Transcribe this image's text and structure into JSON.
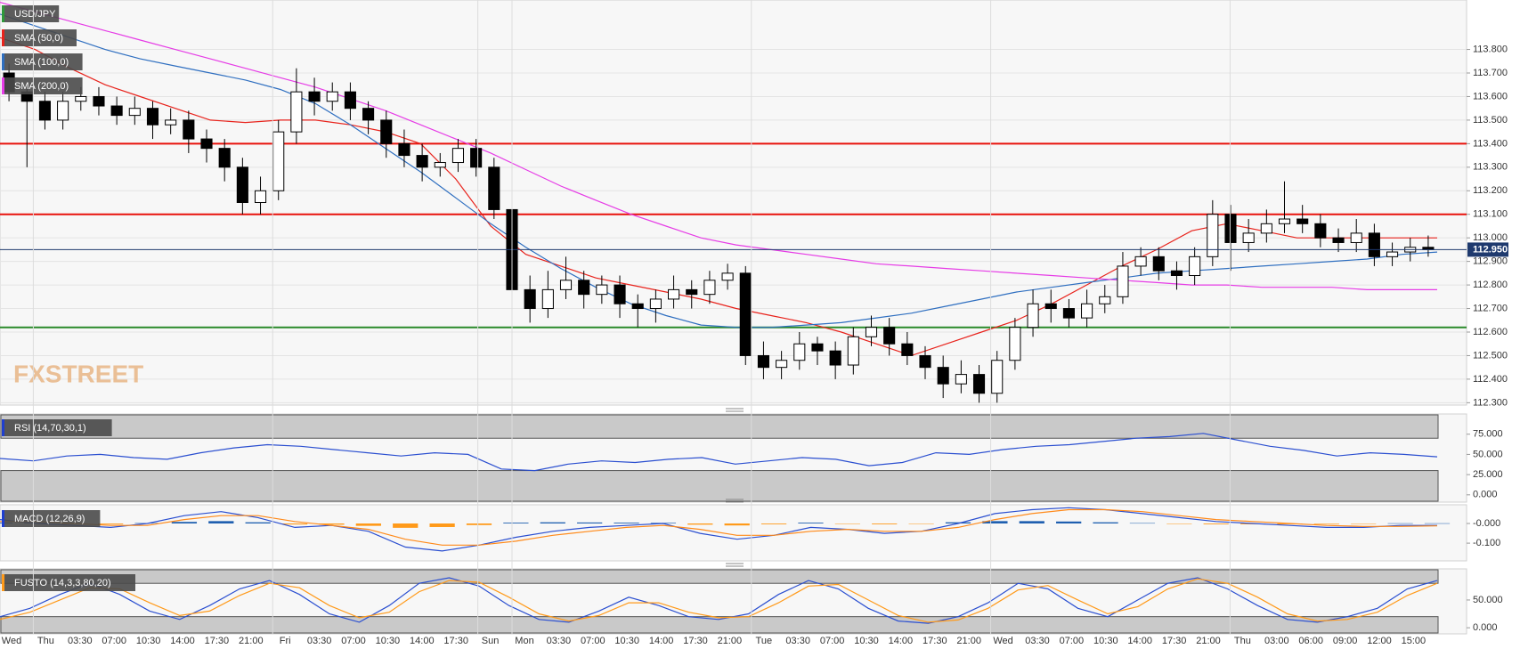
{
  "chart_data": [
    {
      "type": "candlestick",
      "title": "USD/JPY",
      "title_color": "#2e9a3a",
      "watermark": "FXSTREET",
      "categories": [
        "Wed",
        "Thu",
        "03:30",
        "07:00",
        "10:30",
        "14:00",
        "17:30",
        "21:00",
        "Fri",
        "03:30",
        "07:00",
        "10:30",
        "14:00",
        "17:30",
        "Sun",
        "Mon",
        "03:30",
        "07:00",
        "10:30",
        "14:00",
        "17:30",
        "21:00",
        "Tue",
        "03:30",
        "07:00",
        "10:30",
        "14:00",
        "17:30",
        "21:00",
        "Wed",
        "03:30",
        "07:00",
        "10:30",
        "14:00",
        "17:30",
        "21:00",
        "Thu",
        "03:00",
        "06:00",
        "09:00",
        "12:00",
        "15:00"
      ],
      "ylim": [
        112.29,
        114.01
      ],
      "yticks": [
        {
          "value": 112.3,
          "label": "112.300"
        },
        {
          "value": 112.4,
          "label": "112.400"
        },
        {
          "value": 112.5,
          "label": "112.500"
        },
        {
          "value": 112.6,
          "label": "112.600"
        },
        {
          "value": 112.7,
          "label": "112.700"
        },
        {
          "value": 112.8,
          "label": "112.800"
        },
        {
          "value": 112.9,
          "label": "112.900"
        },
        {
          "value": 113.0,
          "label": "113.000"
        },
        {
          "value": 113.1,
          "label": "113.100"
        },
        {
          "value": 113.2,
          "label": "113.200"
        },
        {
          "value": 113.3,
          "label": "113.300"
        },
        {
          "value": 113.4,
          "label": "113.400"
        },
        {
          "value": 113.5,
          "label": "113.500"
        },
        {
          "value": 113.6,
          "label": "113.600"
        },
        {
          "value": 113.7,
          "label": "113.700"
        },
        {
          "value": 113.8,
          "label": "113.800"
        }
      ],
      "grid": true,
      "levels": [
        {
          "value": 113.4,
          "color": "#e8120c"
        },
        {
          "value": 113.1,
          "color": "#e8120c"
        },
        {
          "value": 112.62,
          "color": "#2a8a2a"
        }
      ],
      "last": {
        "value": 112.95,
        "label": "112.950",
        "color": "#1f3a6e"
      },
      "candles": [
        [
          113.7,
          113.74,
          113.58,
          113.62
        ],
        [
          113.62,
          113.66,
          113.3,
          113.58
        ],
        [
          113.58,
          113.62,
          113.46,
          113.5
        ],
        [
          113.5,
          113.62,
          113.46,
          113.58
        ],
        [
          113.58,
          113.64,
          113.54,
          113.6
        ],
        [
          113.6,
          113.64,
          113.52,
          113.56
        ],
        [
          113.56,
          113.6,
          113.48,
          113.52
        ],
        [
          113.52,
          113.6,
          113.48,
          113.55
        ],
        [
          113.55,
          113.58,
          113.42,
          113.48
        ],
        [
          113.48,
          113.55,
          113.44,
          113.5
        ],
        [
          113.5,
          113.54,
          113.36,
          113.42
        ],
        [
          113.42,
          113.46,
          113.32,
          113.38
        ],
        [
          113.38,
          113.42,
          113.24,
          113.3
        ],
        [
          113.3,
          113.34,
          113.1,
          113.15
        ],
        [
          113.15,
          113.26,
          113.1,
          113.2
        ],
        [
          113.2,
          113.5,
          113.16,
          113.45
        ],
        [
          113.45,
          113.72,
          113.4,
          113.62
        ],
        [
          113.62,
          113.68,
          113.52,
          113.58
        ],
        [
          113.58,
          113.66,
          113.54,
          113.62
        ],
        [
          113.62,
          113.66,
          113.5,
          113.55
        ],
        [
          113.55,
          113.58,
          113.44,
          113.5
        ],
        [
          113.5,
          113.54,
          113.34,
          113.4
        ],
        [
          113.4,
          113.46,
          113.3,
          113.35
        ],
        [
          113.35,
          113.4,
          113.24,
          113.3
        ],
        [
          113.3,
          113.36,
          113.26,
          113.32
        ],
        [
          113.32,
          113.42,
          113.28,
          113.38
        ],
        [
          113.38,
          113.42,
          113.26,
          113.3
        ],
        [
          113.3,
          113.34,
          113.08,
          113.12
        ],
        [
          113.12,
          113.16,
          112.68,
          112.78
        ],
        [
          112.78,
          112.84,
          112.64,
          112.7
        ],
        [
          112.7,
          112.86,
          112.66,
          112.78
        ],
        [
          112.78,
          112.92,
          112.74,
          112.82
        ],
        [
          112.82,
          112.86,
          112.7,
          112.76
        ],
        [
          112.76,
          112.84,
          112.72,
          112.8
        ],
        [
          112.8,
          112.84,
          112.66,
          112.72
        ],
        [
          112.72,
          112.76,
          112.62,
          112.7
        ],
        [
          112.7,
          112.78,
          112.64,
          112.74
        ],
        [
          112.74,
          112.84,
          112.7,
          112.78
        ],
        [
          112.78,
          112.82,
          112.7,
          112.76
        ],
        [
          112.76,
          112.86,
          112.72,
          112.82
        ],
        [
          112.82,
          112.89,
          112.78,
          112.85
        ],
        [
          112.85,
          112.88,
          112.46,
          112.5
        ],
        [
          112.5,
          112.56,
          112.4,
          112.45
        ],
        [
          112.45,
          112.52,
          112.4,
          112.48
        ],
        [
          112.48,
          112.6,
          112.44,
          112.55
        ],
        [
          112.55,
          112.58,
          112.46,
          112.52
        ],
        [
          112.52,
          112.56,
          112.4,
          112.46
        ],
        [
          112.46,
          112.62,
          112.42,
          112.58
        ],
        [
          112.58,
          112.67,
          112.54,
          112.62
        ],
        [
          112.62,
          112.66,
          112.5,
          112.55
        ],
        [
          112.55,
          112.6,
          112.46,
          112.5
        ],
        [
          112.5,
          112.54,
          112.4,
          112.45
        ],
        [
          112.45,
          112.5,
          112.32,
          112.38
        ],
        [
          112.38,
          112.48,
          112.34,
          112.42
        ],
        [
          112.42,
          112.46,
          112.3,
          112.34
        ],
        [
          112.34,
          112.52,
          112.3,
          112.48
        ],
        [
          112.48,
          112.66,
          112.44,
          112.62
        ],
        [
          112.62,
          112.78,
          112.58,
          112.72
        ],
        [
          112.72,
          112.78,
          112.64,
          112.7
        ],
        [
          112.7,
          112.74,
          112.62,
          112.66
        ],
        [
          112.66,
          112.78,
          112.62,
          112.72
        ],
        [
          112.72,
          112.8,
          112.68,
          112.75
        ],
        [
          112.75,
          112.94,
          112.72,
          112.88
        ],
        [
          112.88,
          112.96,
          112.84,
          112.92
        ],
        [
          112.92,
          112.96,
          112.82,
          112.86
        ],
        [
          112.86,
          112.9,
          112.78,
          112.84
        ],
        [
          112.84,
          112.96,
          112.8,
          112.92
        ],
        [
          112.92,
          113.16,
          112.88,
          113.1
        ],
        [
          113.1,
          113.14,
          112.86,
          112.98
        ],
        [
          112.98,
          113.08,
          112.94,
          113.02
        ],
        [
          113.02,
          113.12,
          112.98,
          113.06
        ],
        [
          113.06,
          113.24,
          113.02,
          113.08
        ],
        [
          113.08,
          113.14,
          113.02,
          113.06
        ],
        [
          113.06,
          113.1,
          112.96,
          113.0
        ],
        [
          113.0,
          113.04,
          112.94,
          112.98
        ],
        [
          112.98,
          113.08,
          112.94,
          113.02
        ],
        [
          113.02,
          113.06,
          112.88,
          112.92
        ],
        [
          112.92,
          112.98,
          112.88,
          112.94
        ],
        [
          112.94,
          113.0,
          112.9,
          112.96
        ],
        [
          112.96,
          113.01,
          112.92,
          112.95
        ]
      ],
      "series": [
        {
          "name": "SMA (50,0)",
          "color": "#e8231c",
          "values": [
            113.85,
            113.8,
            113.72,
            113.65,
            113.6,
            113.55,
            113.5,
            113.49,
            113.5,
            113.5,
            113.48,
            113.45,
            113.4,
            113.25,
            113.05,
            112.93,
            112.88,
            112.83,
            112.8,
            112.77,
            112.74,
            112.7,
            112.67,
            112.64,
            112.6,
            112.55,
            112.5,
            112.55,
            112.6,
            112.65,
            112.72,
            112.8,
            112.88,
            112.95,
            113.03,
            113.06,
            113.03,
            113.0,
            113.0,
            113.0,
            113.0,
            113.0
          ]
        },
        {
          "name": "SMA (100,0)",
          "color": "#2f6fc0",
          "values": [
            113.95,
            113.9,
            113.85,
            113.8,
            113.76,
            113.73,
            113.7,
            113.67,
            113.63,
            113.57,
            113.48,
            113.38,
            113.28,
            113.17,
            113.06,
            112.96,
            112.87,
            112.79,
            112.72,
            112.67,
            112.63,
            112.62,
            112.62,
            112.63,
            112.64,
            112.66,
            112.68,
            112.71,
            112.74,
            112.77,
            112.79,
            112.81,
            112.83,
            112.85,
            112.86,
            112.87,
            112.88,
            112.89,
            112.9,
            112.91,
            112.93,
            112.94
          ]
        },
        {
          "name": "SMA (200,0)",
          "color": "#e63ce6",
          "values": [
            114.0,
            113.96,
            113.92,
            113.88,
            113.84,
            113.8,
            113.76,
            113.72,
            113.68,
            113.64,
            113.59,
            113.54,
            113.48,
            113.42,
            113.36,
            113.29,
            113.22,
            113.16,
            113.1,
            113.05,
            113.0,
            112.97,
            112.95,
            112.93,
            112.91,
            112.89,
            112.88,
            112.87,
            112.86,
            112.85,
            112.84,
            112.83,
            112.82,
            112.81,
            112.8,
            112.8,
            112.79,
            112.79,
            112.79,
            112.78,
            112.78,
            112.78
          ]
        }
      ]
    },
    {
      "type": "line",
      "title": "RSI (14,70,30,1)",
      "title_color": "#1f3fd0",
      "ylim": [
        -9,
        100
      ],
      "yticks": [
        {
          "value": 0,
          "label": "0.000"
        },
        {
          "value": 25,
          "label": "25.000"
        },
        {
          "value": 50,
          "label": "50.000"
        },
        {
          "value": 75,
          "label": "75.000"
        }
      ],
      "bands": [
        30,
        70
      ],
      "series": [
        {
          "color": "#2b4fd0",
          "values": [
            45,
            42,
            48,
            50,
            46,
            44,
            52,
            58,
            62,
            60,
            56,
            52,
            48,
            52,
            50,
            32,
            30,
            38,
            42,
            40,
            44,
            46,
            38,
            42,
            46,
            44,
            36,
            40,
            52,
            50,
            56,
            60,
            62,
            66,
            70,
            72,
            76,
            68,
            60,
            55,
            48,
            52,
            50,
            47
          ]
        }
      ]
    },
    {
      "type": "line",
      "title": "MACD (12,26,9)",
      "title_color": "#1f3fd0",
      "ylim": [
        -0.19,
        0.095
      ],
      "yticks": [
        {
          "value": -0.1,
          "label": "-0.100"
        },
        {
          "value": 0,
          "label": "-0.000"
        }
      ],
      "series": [
        {
          "type": "bar",
          "color": "#1f5fb0",
          "negative_color": "#ff9a1a",
          "values": [
            0.004,
            0.003,
            -0.003,
            -0.004,
            0.002,
            0.008,
            0.012,
            0.006,
            -0.005,
            -0.006,
            -0.012,
            -0.022,
            -0.018,
            -0.008,
            0.004,
            0.006,
            0.005,
            0.004,
            0.003,
            -0.006,
            -0.01,
            -0.004,
            0.004,
            -0.002,
            -0.004,
            -0.002,
            0.006,
            0.012,
            0.012,
            0.01,
            0.006,
            0.002,
            -0.002,
            -0.004,
            -0.004,
            -0.004,
            -0.003,
            -0.002,
            0.001,
            0.001
          ]
        },
        {
          "color": "#2b4fd0",
          "values": [
            0.02,
            0.0,
            -0.01,
            -0.02,
            0.0,
            0.04,
            0.06,
            0.03,
            -0.02,
            -0.01,
            -0.04,
            -0.12,
            -0.14,
            -0.11,
            -0.07,
            -0.04,
            -0.02,
            -0.01,
            0.0,
            -0.05,
            -0.08,
            -0.06,
            -0.02,
            -0.03,
            -0.05,
            -0.04,
            0.0,
            0.05,
            0.07,
            0.08,
            0.07,
            0.05,
            0.03,
            0.01,
            0.0,
            -0.01,
            -0.02,
            -0.02,
            -0.01,
            -0.01
          ]
        },
        {
          "color": "#ff8a1a",
          "values": [
            0.01,
            0.01,
            0.0,
            -0.01,
            -0.01,
            0.02,
            0.04,
            0.04,
            0.01,
            -0.01,
            -0.03,
            -0.08,
            -0.11,
            -0.11,
            -0.09,
            -0.06,
            -0.04,
            -0.02,
            -0.01,
            -0.03,
            -0.06,
            -0.06,
            -0.04,
            -0.03,
            -0.04,
            -0.04,
            -0.02,
            0.02,
            0.05,
            0.07,
            0.07,
            0.06,
            0.04,
            0.02,
            0.01,
            0.0,
            -0.01,
            -0.015,
            -0.015,
            -0.012
          ]
        }
      ]
    },
    {
      "type": "line",
      "title": "FUSTO (14,3,3,80,20)",
      "title_color": "#ff9a1a",
      "ylim": [
        -11,
        106
      ],
      "yticks": [
        {
          "value": 0,
          "label": "0.000"
        },
        {
          "value": 50,
          "label": "50.000"
        }
      ],
      "bands": [
        20,
        80
      ],
      "series": [
        {
          "color": "#2b4fd0",
          "values": [
            20,
            35,
            60,
            80,
            60,
            30,
            15,
            40,
            70,
            85,
            60,
            25,
            10,
            40,
            80,
            90,
            75,
            40,
            15,
            10,
            30,
            55,
            40,
            20,
            15,
            25,
            60,
            85,
            70,
            35,
            12,
            8,
            20,
            45,
            80,
            70,
            35,
            20,
            50,
            80,
            90,
            70,
            40,
            15,
            10,
            20,
            35,
            70,
            85
          ]
        },
        {
          "color": "#ff9a1a",
          "values": [
            15,
            28,
            50,
            72,
            70,
            45,
            22,
            30,
            58,
            80,
            72,
            40,
            18,
            28,
            65,
            85,
            82,
            55,
            25,
            12,
            22,
            45,
            45,
            28,
            18,
            20,
            45,
            75,
            78,
            50,
            22,
            10,
            14,
            35,
            68,
            76,
            50,
            25,
            38,
            70,
            88,
            80,
            55,
            25,
            12,
            15,
            28,
            58,
            80
          ]
        }
      ]
    }
  ]
}
